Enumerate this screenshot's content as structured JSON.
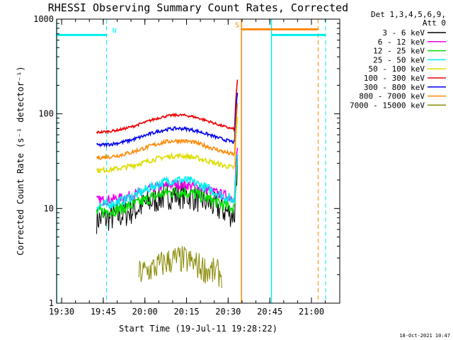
{
  "chart_data": {
    "type": "line",
    "title": "RHESSI Observing Summary Count Rates, Corrected",
    "xlabel": "Start Time (19-Jul-11 19:28:22)",
    "ylabel": "Corrected Count Rate (s⁻¹ detector⁻¹)",
    "yscale": "log",
    "ylim": [
      1,
      1000
    ],
    "xlim_minutes": [
      19.47,
      21.17
    ],
    "xtick_labels": [
      "19:30",
      "19:45",
      "20:00",
      "20:15",
      "20:30",
      "20:45",
      "21:00"
    ],
    "xtick_values_hours": [
      19.5,
      19.75,
      20.0,
      20.25,
      20.5,
      20.75,
      21.0
    ],
    "ytick_labels": [
      "1",
      "10",
      "100",
      "1000"
    ],
    "ytick_values": [
      1,
      10,
      100,
      1000
    ],
    "grid": false,
    "legend_position": "right",
    "legend_header": [
      "Det 1,3,4,5,6,9,",
      "Att 0"
    ],
    "series": [
      {
        "name": "3 - 6 keV",
        "color": "#000000",
        "start": 19.71,
        "end": 20.555,
        "base": 7.5,
        "peak": 14,
        "noise": 0.35
      },
      {
        "name": "6 - 12 keV",
        "color": "#ee00ee",
        "start": 19.71,
        "end": 20.555,
        "base": 12,
        "peak": 18,
        "noise": 0.12
      },
      {
        "name": "12 - 25 keV",
        "color": "#00dd00",
        "start": 19.71,
        "end": 20.555,
        "base": 9,
        "peak": 15,
        "noise": 0.15
      },
      {
        "name": "25 - 50 keV",
        "color": "#00eeee",
        "start": 19.71,
        "end": 20.555,
        "base": 10.5,
        "peak": 20,
        "noise": 0.12
      },
      {
        "name": "50 - 100 keV",
        "color": "#dddd00",
        "start": 19.71,
        "end": 20.555,
        "base": 25,
        "peak": 36,
        "noise": 0.06
      },
      {
        "name": "100 - 300 keV",
        "color": "#ee0000",
        "start": 19.71,
        "end": 20.555,
        "base": 63,
        "peak": 97,
        "noise": 0.03
      },
      {
        "name": "300 - 800 keV",
        "color": "#0000ee",
        "start": 19.71,
        "end": 20.555,
        "base": 46,
        "peak": 70,
        "noise": 0.04
      },
      {
        "name": "800 - 7000 keV",
        "color": "#ff8800",
        "start": 19.71,
        "end": 20.555,
        "base": 34,
        "peak": 52,
        "noise": 0.05
      },
      {
        "name": "7000 - 15000 keV",
        "color": "#888800",
        "start": 19.96,
        "end": 20.46,
        "base": 2.0,
        "peak": 2.9,
        "noise": 0.35
      }
    ],
    "flags": [
      {
        "label": "N",
        "color": "#00eeee",
        "x_start": 19.47,
        "x_end": 19.77,
        "level": 680,
        "dashed_at": 19.77
      },
      {
        "label": "S",
        "color": "#ff8800",
        "x_start": 20.58,
        "x_end": 21.04,
        "level": 780,
        "dashed_at": 21.04
      },
      {
        "label": "",
        "color": "#00eeee",
        "x_start": 20.76,
        "x_end": 21.085,
        "level": 680,
        "dashed_at": 21.085
      }
    ],
    "flag_verticals": [
      {
        "color": "#00eeee",
        "x": 19.47
      },
      {
        "color": "#ff8800",
        "x": 20.58
      },
      {
        "color": "#00eeee",
        "x": 20.76
      }
    ]
  },
  "timestamp": "18-Oct-2021 10:47"
}
